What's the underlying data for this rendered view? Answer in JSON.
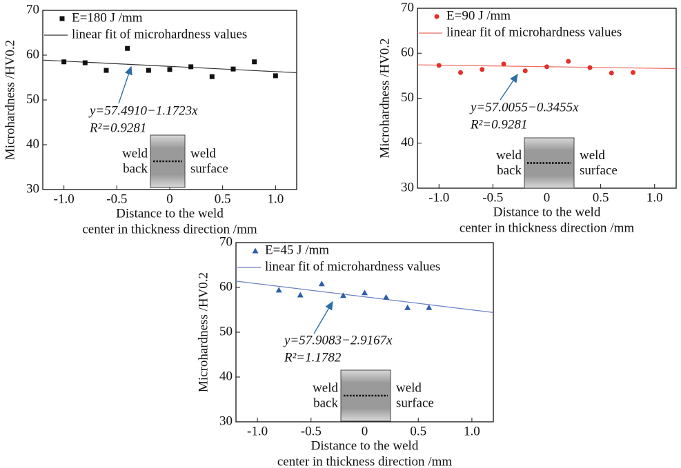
{
  "chart_data": [
    {
      "type": "scatter",
      "x": [
        -1.0,
        -0.8,
        -0.6,
        -0.4,
        -0.2,
        0,
        0.2,
        0.4,
        0.6,
        0.8,
        1.0
      ],
      "series": [
        {
          "name": "E=180 J /mm",
          "color": "#111111",
          "marker": "square",
          "values": [
            58.5,
            58.3,
            56.6,
            61.5,
            56.6,
            56.8,
            57.4,
            55.2,
            56.9,
            58.5,
            55.4
          ]
        }
      ],
      "fit": {
        "name": "linear fit of microhardness values",
        "color": "#333333",
        "intercept": 57.491,
        "slope": -1.1723
      },
      "annotations": [
        "y=57.4910−1.1723x",
        "R²=0.9281"
      ],
      "inset_labels": {
        "left": [
          "weld",
          "back"
        ],
        "right": [
          "weld",
          "surface"
        ]
      },
      "xlabel": [
        "Distance to the weld",
        "center in thickness direction /mm"
      ],
      "ylabel": "Microhardness /HV0.2",
      "xlim": [
        -1.2,
        1.2
      ],
      "xticks": [
        {
          "value": -1,
          "label": "-1.0"
        },
        -0.5,
        0,
        0.5,
        {
          "value": 1,
          "label": "1.0"
        }
      ],
      "ylim": [
        30,
        70
      ],
      "yticks": [
        30,
        40,
        50,
        60,
        70
      ]
    },
    {
      "type": "scatter",
      "x": [
        -1.0,
        -0.8,
        -0.6,
        -0.4,
        -0.2,
        0,
        0.2,
        0.4,
        0.6,
        0.8
      ],
      "series": [
        {
          "name": "E=90 J /mm",
          "color": "#e5302a",
          "marker": "circle",
          "values": [
            57.3,
            55.7,
            56.4,
            57.6,
            56.1,
            57.0,
            58.2,
            56.8,
            55.6,
            55.7
          ]
        }
      ],
      "fit": {
        "name": "linear fit of microhardness values",
        "color": "#ee6a5f",
        "intercept": 57.0055,
        "slope": -0.3455
      },
      "annotations": [
        "y=57.0055−0.3455x",
        "R²=0.9281"
      ],
      "inset_labels": {
        "left": [
          "weld",
          "back"
        ],
        "right": [
          "weld",
          "surface"
        ]
      },
      "xlabel": [
        "Distance to the weld",
        "center in thickness direction /mm"
      ],
      "ylabel": "Microhardness /HV0.2",
      "xlim": [
        -1.2,
        1.2
      ],
      "xticks": [
        {
          "value": -1,
          "label": "-1.0"
        },
        -0.5,
        0,
        0.5,
        {
          "value": 1,
          "label": "1.0"
        }
      ],
      "ylim": [
        30,
        70
      ],
      "yticks": [
        30,
        40,
        50,
        60,
        70
      ]
    },
    {
      "type": "scatter",
      "x": [
        -0.8,
        -0.6,
        -0.4,
        -0.2,
        0,
        0.2,
        0.4,
        0.6
      ],
      "series": [
        {
          "name": "E=45 J /mm",
          "color": "#2d5ea8",
          "marker": "triangle",
          "values": [
            59.4,
            58.3,
            60.8,
            58.2,
            58.8,
            57.8,
            55.5,
            55.5
          ]
        }
      ],
      "fit": {
        "name": "linear fit of microhardness values",
        "color": "#6a7fc0",
        "intercept": 57.9083,
        "slope": -2.9167
      },
      "annotations": [
        "y=57.9083−2.9167x",
        "R²=1.1782"
      ],
      "inset_labels": {
        "left": [
          "weld",
          "back"
        ],
        "right": [
          "weld",
          "surface"
        ]
      },
      "xlabel": [
        "Distance to the weld",
        "center in thickness direction /mm"
      ],
      "ylabel": "Microhardness /HV0.2",
      "xlim": [
        -1.2,
        1.2
      ],
      "xticks": [
        {
          "value": -1,
          "label": "-1.0"
        },
        -0.5,
        0,
        0.5,
        {
          "value": 1,
          "label": "1.0"
        }
      ],
      "ylim": [
        30,
        70
      ],
      "yticks": [
        30,
        40,
        50,
        60,
        70
      ]
    }
  ]
}
